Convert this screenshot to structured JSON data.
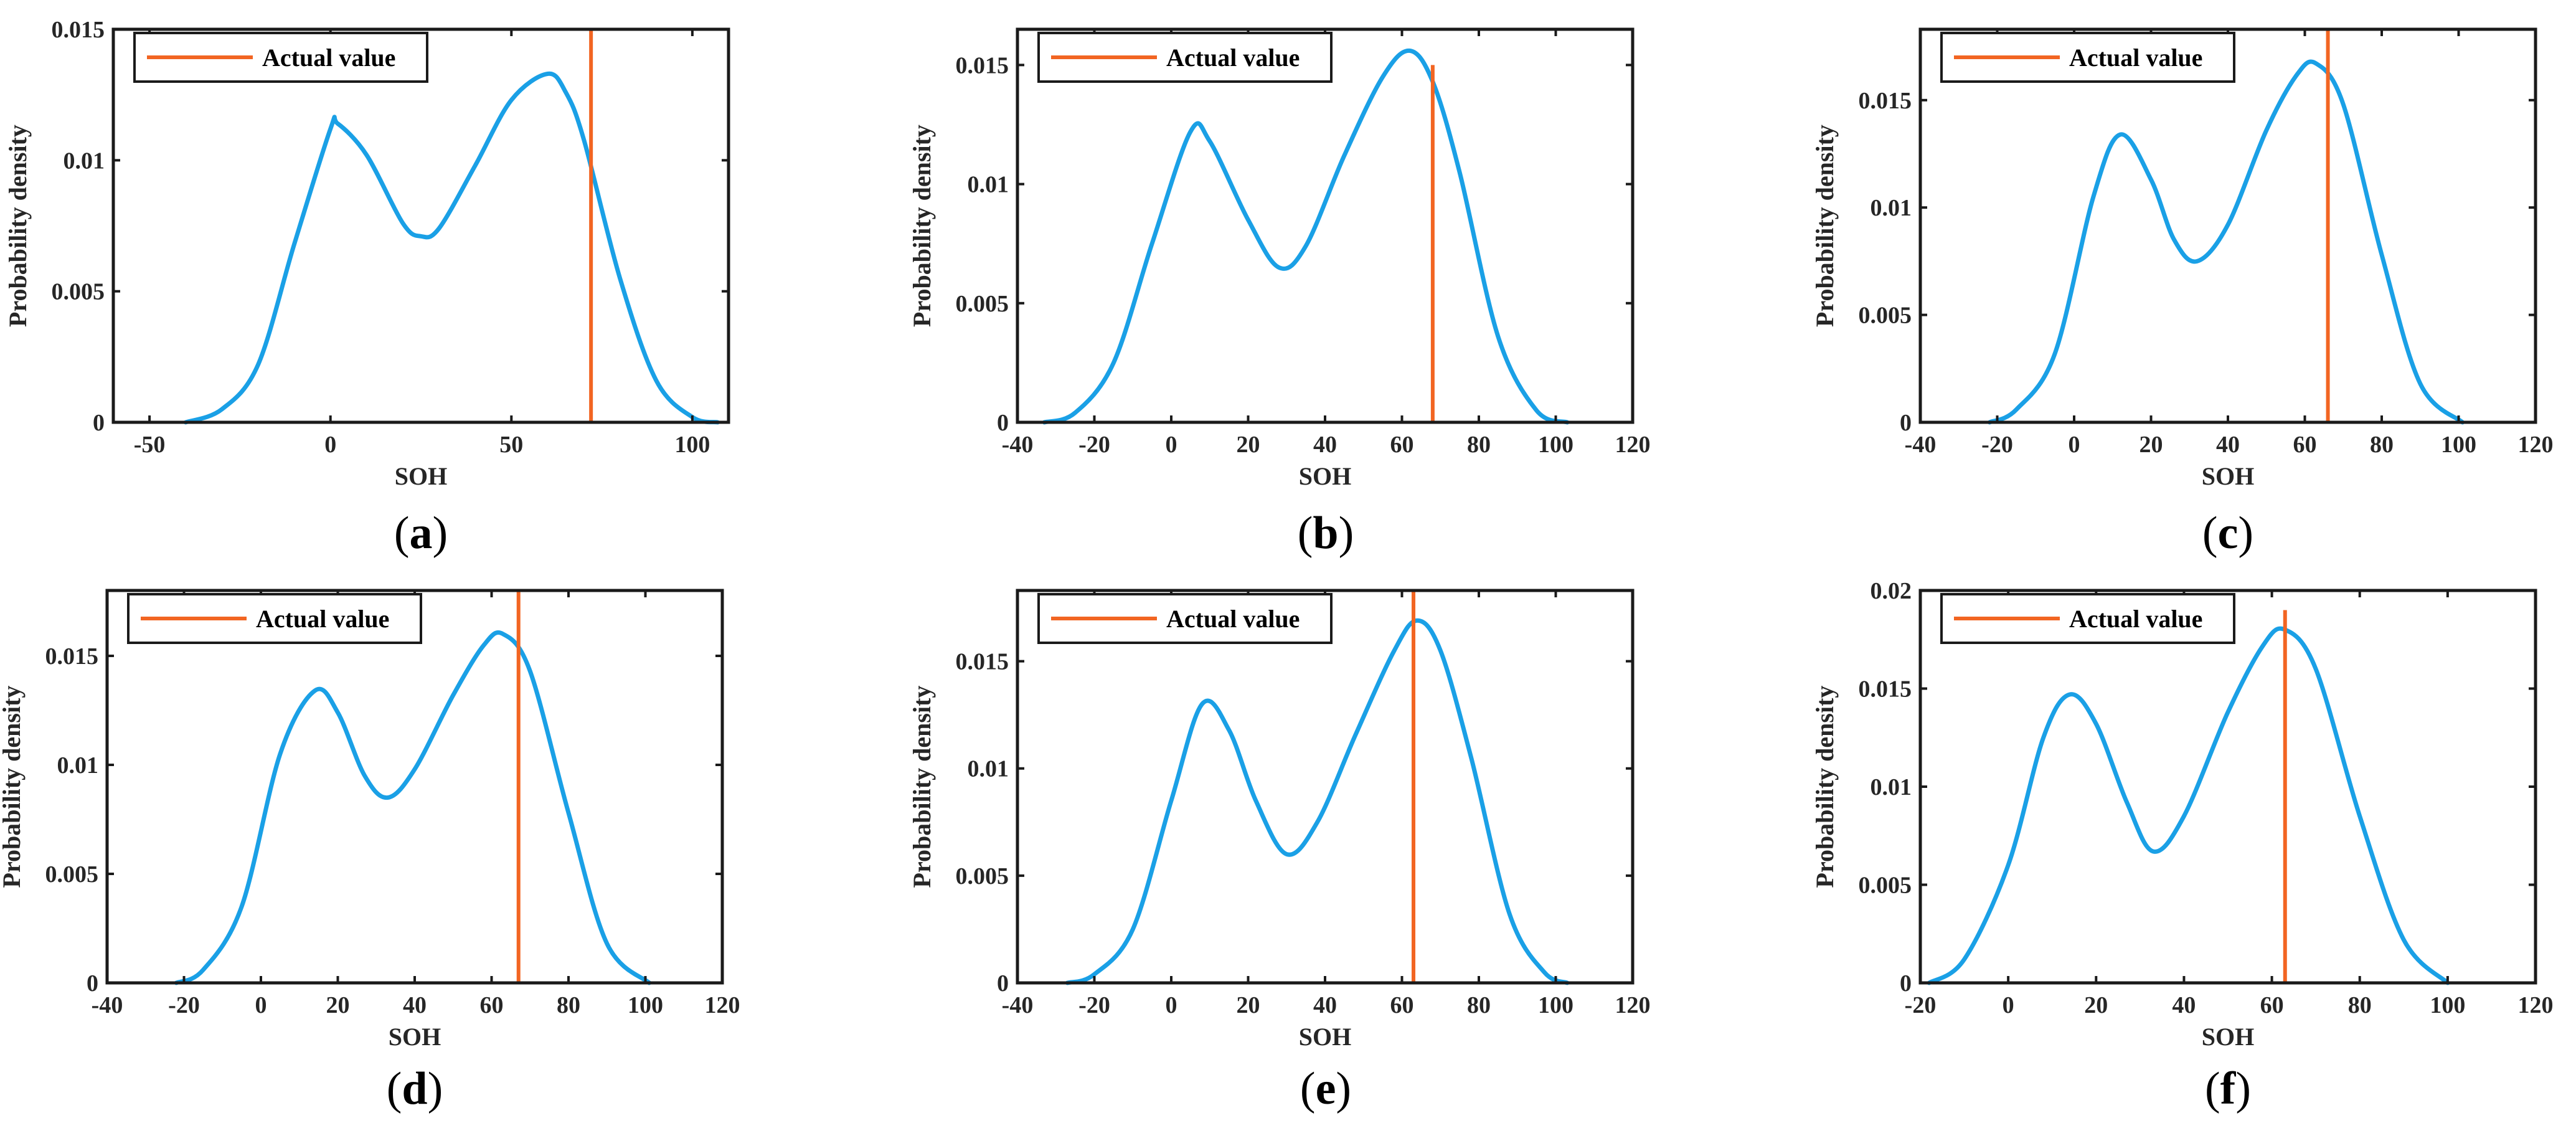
{
  "colors": {
    "density_curve": "#1aa0e6",
    "actual_value": "#f26522",
    "axes": "#1a1a1a",
    "text": "#262626"
  },
  "chart_data": [
    {
      "id": "a",
      "type": "line",
      "caption_letter": "a",
      "xlabel": "SOH",
      "ylabel": "Probability density",
      "xlim": [
        -60,
        110
      ],
      "ylim": [
        0,
        0.015
      ],
      "xticks": [
        -50,
        0,
        50,
        100
      ],
      "yticks": [
        0,
        0.005,
        0.01,
        0.015
      ],
      "xtick_labels": [
        "-50",
        "0",
        "50",
        "100"
      ],
      "ytick_labels": [
        "0",
        "0.005",
        "0.01",
        "0.015"
      ],
      "series": [
        {
          "name": "Probability density",
          "x": [
            -40,
            -30,
            -20,
            -10,
            0,
            2,
            10,
            20,
            25,
            30,
            40,
            50,
            60,
            65,
            70,
            80,
            90,
            100,
            107
          ],
          "y": [
            0,
            0.0005,
            0.0022,
            0.0068,
            0.0112,
            0.0114,
            0.0102,
            0.0076,
            0.0071,
            0.0074,
            0.0098,
            0.0123,
            0.0133,
            0.0126,
            0.0108,
            0.0055,
            0.0016,
            0.0002,
            0
          ]
        }
      ],
      "actual_value": {
        "label": "Actual value",
        "x": 72,
        "y_top": 0.015
      },
      "legend": {
        "entries": [
          "Actual value"
        ],
        "location": "top-left"
      }
    },
    {
      "id": "b",
      "type": "line",
      "caption_letter": "b",
      "xlabel": "SOH",
      "ylabel": "Probability density",
      "xlim": [
        -40,
        120
      ],
      "ylim": [
        0,
        0.0165
      ],
      "xticks": [
        -40,
        -20,
        0,
        20,
        40,
        60,
        80,
        100,
        120
      ],
      "yticks": [
        0,
        0.005,
        0.01,
        0.015
      ],
      "xtick_labels": [
        "-40",
        "-20",
        "0",
        "20",
        "40",
        "60",
        "80",
        "100",
        "120"
      ],
      "ytick_labels": [
        "0",
        "0.005",
        "0.01",
        "0.015"
      ],
      "series": [
        {
          "name": "Probability density",
          "x": [
            -33,
            -25,
            -15,
            -5,
            5,
            10,
            20,
            28,
            35,
            45,
            55,
            62,
            68,
            75,
            85,
            95,
            103
          ],
          "y": [
            0,
            0.0004,
            0.0025,
            0.0075,
            0.0122,
            0.0118,
            0.0085,
            0.0065,
            0.0074,
            0.0112,
            0.0145,
            0.0156,
            0.0143,
            0.0105,
            0.0036,
            0.0005,
            0
          ]
        }
      ],
      "actual_value": {
        "label": "Actual value",
        "x": 68,
        "y_top": 0.015
      },
      "legend": {
        "entries": [
          "Actual value"
        ],
        "location": "top-left"
      }
    },
    {
      "id": "c",
      "type": "line",
      "caption_letter": "c",
      "xlabel": "SOH",
      "ylabel": "Probability density",
      "xlim": [
        -40,
        120
      ],
      "ylim": [
        0,
        0.0183
      ],
      "xticks": [
        -40,
        -20,
        0,
        20,
        40,
        60,
        80,
        100,
        120
      ],
      "yticks": [
        0,
        0.005,
        0.01,
        0.015
      ],
      "xtick_labels": [
        "-40",
        "-20",
        "0",
        "20",
        "40",
        "60",
        "80",
        "100",
        "120"
      ],
      "ytick_labels": [
        "0",
        "0.005",
        "0.01",
        "0.015"
      ],
      "series": [
        {
          "name": "Probability density",
          "x": [
            -22,
            -15,
            -5,
            5,
            12,
            20,
            26,
            32,
            40,
            50,
            58,
            63,
            70,
            80,
            90,
            101
          ],
          "y": [
            0,
            0.0006,
            0.0032,
            0.0105,
            0.0134,
            0.0113,
            0.0085,
            0.0075,
            0.0092,
            0.0136,
            0.0162,
            0.0167,
            0.0148,
            0.0078,
            0.0018,
            0
          ]
        }
      ],
      "actual_value": {
        "label": "Actual value",
        "x": 66,
        "y_top": 0.0183
      },
      "legend": {
        "entries": [
          "Actual value"
        ],
        "location": "top-left"
      }
    },
    {
      "id": "d",
      "type": "line",
      "caption_letter": "d",
      "xlabel": "SOH",
      "ylabel": "Probability density",
      "xlim": [
        -40,
        120
      ],
      "ylim": [
        0,
        0.018
      ],
      "xticks": [
        -40,
        -20,
        0,
        20,
        40,
        60,
        80,
        100,
        120
      ],
      "yticks": [
        0,
        0.005,
        0.01,
        0.015
      ],
      "xtick_labels": [
        "-40",
        "-20",
        "0",
        "20",
        "40",
        "60",
        "80",
        "100",
        "120"
      ],
      "ytick_labels": [
        "0",
        "0.005",
        "0.01",
        "0.015"
      ],
      "series": [
        {
          "name": "Probability density",
          "x": [
            -22,
            -15,
            -5,
            5,
            14,
            20,
            27,
            33,
            40,
            50,
            58,
            63,
            70,
            80,
            90,
            101
          ],
          "y": [
            0,
            0.0006,
            0.0035,
            0.0105,
            0.0134,
            0.0124,
            0.0095,
            0.0085,
            0.0098,
            0.0132,
            0.0155,
            0.016,
            0.0143,
            0.0078,
            0.0018,
            0
          ]
        }
      ],
      "actual_value": {
        "label": "Actual value",
        "x": 67,
        "y_top": 0.018
      },
      "legend": {
        "entries": [
          "Actual value"
        ],
        "location": "top-left"
      }
    },
    {
      "id": "e",
      "type": "line",
      "caption_letter": "e",
      "xlabel": "SOH",
      "ylabel": "Probability density",
      "xlim": [
        -40,
        120
      ],
      "ylim": [
        0,
        0.0183
      ],
      "xticks": [
        -40,
        -20,
        0,
        20,
        40,
        60,
        80,
        100,
        120
      ],
      "yticks": [
        0,
        0.005,
        0.01,
        0.015
      ],
      "xtick_labels": [
        "-40",
        "-20",
        "0",
        "20",
        "40",
        "60",
        "80",
        "100",
        "120"
      ],
      "ytick_labels": [
        "0",
        "0.005",
        "0.01",
        "0.015"
      ],
      "series": [
        {
          "name": "Probability density",
          "x": [
            -27,
            -20,
            -10,
            0,
            8,
            15,
            22,
            30,
            38,
            48,
            58,
            64,
            70,
            78,
            88,
            97,
            103
          ],
          "y": [
            0,
            0.0004,
            0.0025,
            0.0085,
            0.013,
            0.0118,
            0.0085,
            0.006,
            0.0075,
            0.0116,
            0.0155,
            0.0169,
            0.0155,
            0.0105,
            0.0032,
            0.0005,
            0
          ]
        }
      ],
      "actual_value": {
        "label": "Actual value",
        "x": 63,
        "y_top": 0.0183
      },
      "legend": {
        "entries": [
          "Actual value"
        ],
        "location": "top-left"
      }
    },
    {
      "id": "f",
      "type": "line",
      "caption_letter": "f",
      "xlabel": "SOH",
      "ylabel": "Probability density",
      "xlim": [
        -20,
        120
      ],
      "ylim": [
        0,
        0.02
      ],
      "xticks": [
        -20,
        0,
        20,
        40,
        60,
        80,
        100,
        120
      ],
      "yticks": [
        0,
        0.005,
        0.01,
        0.015,
        0.02
      ],
      "xtick_labels": [
        "-20",
        "0",
        "20",
        "40",
        "60",
        "80",
        "100",
        "120"
      ],
      "ytick_labels": [
        "0",
        "0.005",
        "0.01",
        "0.015",
        "0.02"
      ],
      "series": [
        {
          "name": "Probability density",
          "x": [
            -18,
            -10,
            0,
            8,
            14,
            20,
            27,
            33,
            40,
            50,
            58,
            63,
            70,
            80,
            90,
            100
          ],
          "y": [
            0,
            0.0012,
            0.006,
            0.0125,
            0.0147,
            0.0132,
            0.0092,
            0.0067,
            0.0085,
            0.0138,
            0.0172,
            0.018,
            0.016,
            0.0085,
            0.0022,
            0
          ]
        }
      ],
      "actual_value": {
        "label": "Actual value",
        "x": 63,
        "y_top": 0.019
      },
      "legend": {
        "entries": [
          "Actual value"
        ],
        "location": "top-left"
      }
    }
  ]
}
